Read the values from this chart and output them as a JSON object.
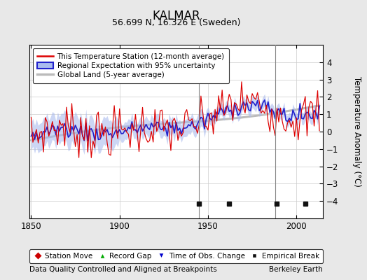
{
  "title": "KALMAR",
  "subtitle": "56.699 N, 16.326 E (Sweden)",
  "ylabel": "Temperature Anomaly (°C)",
  "xlabel_left": "Data Quality Controlled and Aligned at Breakpoints",
  "xlabel_right": "Berkeley Earth",
  "year_start": 1850,
  "year_end": 2013,
  "ylim": [
    -5,
    5
  ],
  "yticks": [
    -4,
    -3,
    -2,
    -1,
    0,
    1,
    2,
    3,
    4
  ],
  "xticks": [
    1850,
    1900,
    1950,
    2000
  ],
  "background_color": "#e8e8e8",
  "plot_bg_color": "#ffffff",
  "station_color": "#dd0000",
  "regional_color": "#2222cc",
  "regional_fill_color": "#aabbee",
  "global_color": "#bbbbbb",
  "vertical_lines": [
    1945,
    1988
  ],
  "empirical_break_years": [
    1945,
    1962,
    1989,
    2005
  ],
  "legend_labels": [
    "This Temperature Station (12-month average)",
    "Regional Expectation with 95% uncertainty",
    "Global Land (5-year average)"
  ],
  "bottom_legend_labels": [
    "Station Move",
    "Record Gap",
    "Time of Obs. Change",
    "Empirical Break"
  ]
}
